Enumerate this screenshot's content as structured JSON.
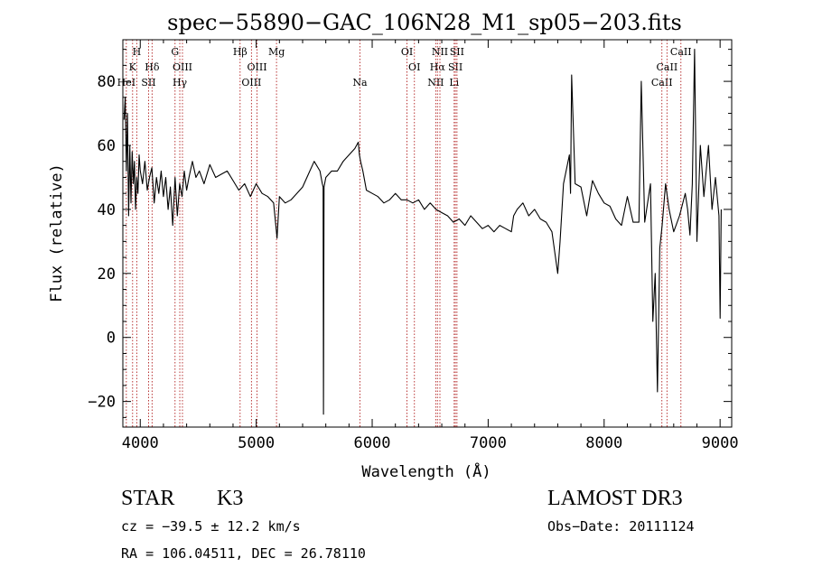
{
  "chart_data": {
    "type": "line",
    "title": "spec−55890−GAC_106N28_M1_sp05−203.fits",
    "xlabel": "Wavelength (Å)",
    "ylabel": "Flux (relative)",
    "xlim": [
      3850,
      9100
    ],
    "ylim": [
      -28,
      93
    ],
    "x_ticks": [
      4000,
      5000,
      6000,
      7000,
      8000,
      9000
    ],
    "y_ticks": [
      -20,
      0,
      20,
      40,
      60,
      80
    ],
    "grid": false,
    "colors": {
      "spectrum": "#000000",
      "line_markers": "#b22222",
      "axes": "#000000"
    },
    "series": [
      {
        "x": [
          3860,
          3870,
          3880,
          3890,
          3900,
          3910,
          3920,
          3930,
          3940,
          3950,
          3960,
          3970,
          3980,
          3990,
          4000,
          4020,
          4040,
          4060,
          4080,
          4100,
          4120,
          4140,
          4160,
          4180,
          4200,
          4220,
          4240,
          4260,
          4280,
          4300,
          4320,
          4340,
          4360,
          4380,
          4400,
          4420,
          4450,
          4480,
          4510,
          4550,
          4600,
          4650,
          4700,
          4750,
          4800,
          4850,
          4900,
          4950,
          5000,
          5050,
          5100,
          5150,
          5180,
          5200,
          5250,
          5300,
          5350,
          5400,
          5450,
          5500,
          5550,
          5570,
          5577,
          5580,
          5585,
          5600,
          5650,
          5700,
          5750,
          5800,
          5850,
          5880,
          5890,
          5900,
          5920,
          5950,
          6000,
          6050,
          6100,
          6150,
          6200,
          6250,
          6300,
          6350,
          6400,
          6450,
          6500,
          6550,
          6600,
          6650,
          6700,
          6750,
          6800,
          6850,
          6900,
          6950,
          7000,
          7050,
          7100,
          7150,
          7200,
          7220,
          7250,
          7300,
          7350,
          7400,
          7450,
          7500,
          7550,
          7600,
          7620,
          7650,
          7700,
          7710,
          7720,
          7750,
          7800,
          7850,
          7900,
          7950,
          8000,
          8050,
          8100,
          8150,
          8200,
          8250,
          8300,
          8320,
          8350,
          8400,
          8420,
          8440,
          8460,
          8480,
          8500,
          8530,
          8560,
          8600,
          8650,
          8700,
          8720,
          8740,
          8760,
          8780,
          8800,
          8830,
          8860,
          8900,
          8930,
          8960,
          8990,
          9000,
          9010
        ],
        "y": [
          68,
          75,
          52,
          70,
          38,
          60,
          42,
          58,
          48,
          55,
          40,
          50,
          45,
          57,
          52,
          48,
          55,
          46,
          50,
          53,
          42,
          50,
          45,
          52,
          44,
          50,
          40,
          47,
          35,
          50,
          38,
          48,
          44,
          52,
          46,
          50,
          55,
          50,
          52,
          48,
          54,
          50,
          51,
          52,
          49,
          46,
          48,
          44,
          48,
          45,
          44,
          42,
          31,
          44,
          42,
          43,
          45,
          47,
          51,
          55,
          52,
          48,
          47,
          -24,
          47,
          50,
          52,
          52,
          55,
          57,
          59,
          61,
          57,
          55,
          52,
          46,
          45,
          44,
          42,
          43,
          45,
          43,
          43,
          42,
          43,
          40,
          42,
          40,
          39,
          38,
          36,
          37,
          35,
          38,
          36,
          34,
          35,
          33,
          35,
          34,
          33,
          38,
          40,
          42,
          38,
          40,
          37,
          36,
          33,
          20,
          30,
          48,
          57,
          45,
          82,
          48,
          47,
          38,
          49,
          45,
          42,
          41,
          37,
          35,
          44,
          36,
          36,
          80,
          36,
          48,
          5,
          20,
          -17,
          28,
          35,
          48,
          40,
          33,
          38,
          45,
          40,
          32,
          48,
          90,
          30,
          60,
          44,
          60,
          40,
          50,
          38,
          6,
          40
        ],
        "color": "#000000"
      }
    ],
    "lines": [
      {
        "x": 3880,
        "rows": [
          "",
          "",
          "HeI"
        ]
      },
      {
        "x": 3934,
        "rows": [
          "",
          "K",
          ""
        ]
      },
      {
        "x": 3970,
        "rows": [
          "H",
          "",
          ""
        ]
      },
      {
        "x": 4072,
        "rows": [
          "",
          "",
          "SII"
        ]
      },
      {
        "x": 4102,
        "rows": [
          "",
          "Hδ",
          ""
        ]
      },
      {
        "x": 4300,
        "rows": [
          "G",
          "",
          ""
        ]
      },
      {
        "x": 4341,
        "rows": [
          "",
          "",
          "Hγ"
        ]
      },
      {
        "x": 4364,
        "rows": [
          "",
          "OIII",
          ""
        ]
      },
      {
        "x": 4861,
        "rows": [
          "Hβ",
          "",
          ""
        ]
      },
      {
        "x": 4959,
        "rows": [
          "",
          "",
          "OIII"
        ]
      },
      {
        "x": 5007,
        "rows": [
          "",
          "OIII",
          ""
        ]
      },
      {
        "x": 5175,
        "rows": [
          "Mg",
          "",
          ""
        ]
      },
      {
        "x": 5894,
        "rows": [
          "",
          "",
          "Na"
        ]
      },
      {
        "x": 6300,
        "rows": [
          "OI",
          "",
          ""
        ]
      },
      {
        "x": 6364,
        "rows": [
          "",
          "OI",
          ""
        ]
      },
      {
        "x": 6548,
        "rows": [
          "",
          "",
          "NII"
        ]
      },
      {
        "x": 6563,
        "rows": [
          "",
          "Hα",
          ""
        ]
      },
      {
        "x": 6584,
        "rows": [
          "NII",
          "",
          ""
        ]
      },
      {
        "x": 6707,
        "rows": [
          "",
          "",
          "Li"
        ]
      },
      {
        "x": 6717,
        "rows": [
          "",
          "SII",
          ""
        ]
      },
      {
        "x": 6731,
        "rows": [
          "SII",
          "",
          ""
        ]
      },
      {
        "x": 8498,
        "rows": [
          "",
          "",
          "CaII"
        ]
      },
      {
        "x": 8542,
        "rows": [
          "",
          "CaII",
          ""
        ]
      },
      {
        "x": 8662,
        "rows": [
          "CaII",
          "",
          ""
        ]
      }
    ]
  },
  "info": {
    "object_class": "STAR",
    "subclass": "K3",
    "survey": "LAMOST DR3",
    "redshift_line": "cz = −39.5 ± 12.2 km/s",
    "obs_date": "Obs−Date: 20111124",
    "coords": "RA = 106.04511, DEC =  26.78110"
  }
}
